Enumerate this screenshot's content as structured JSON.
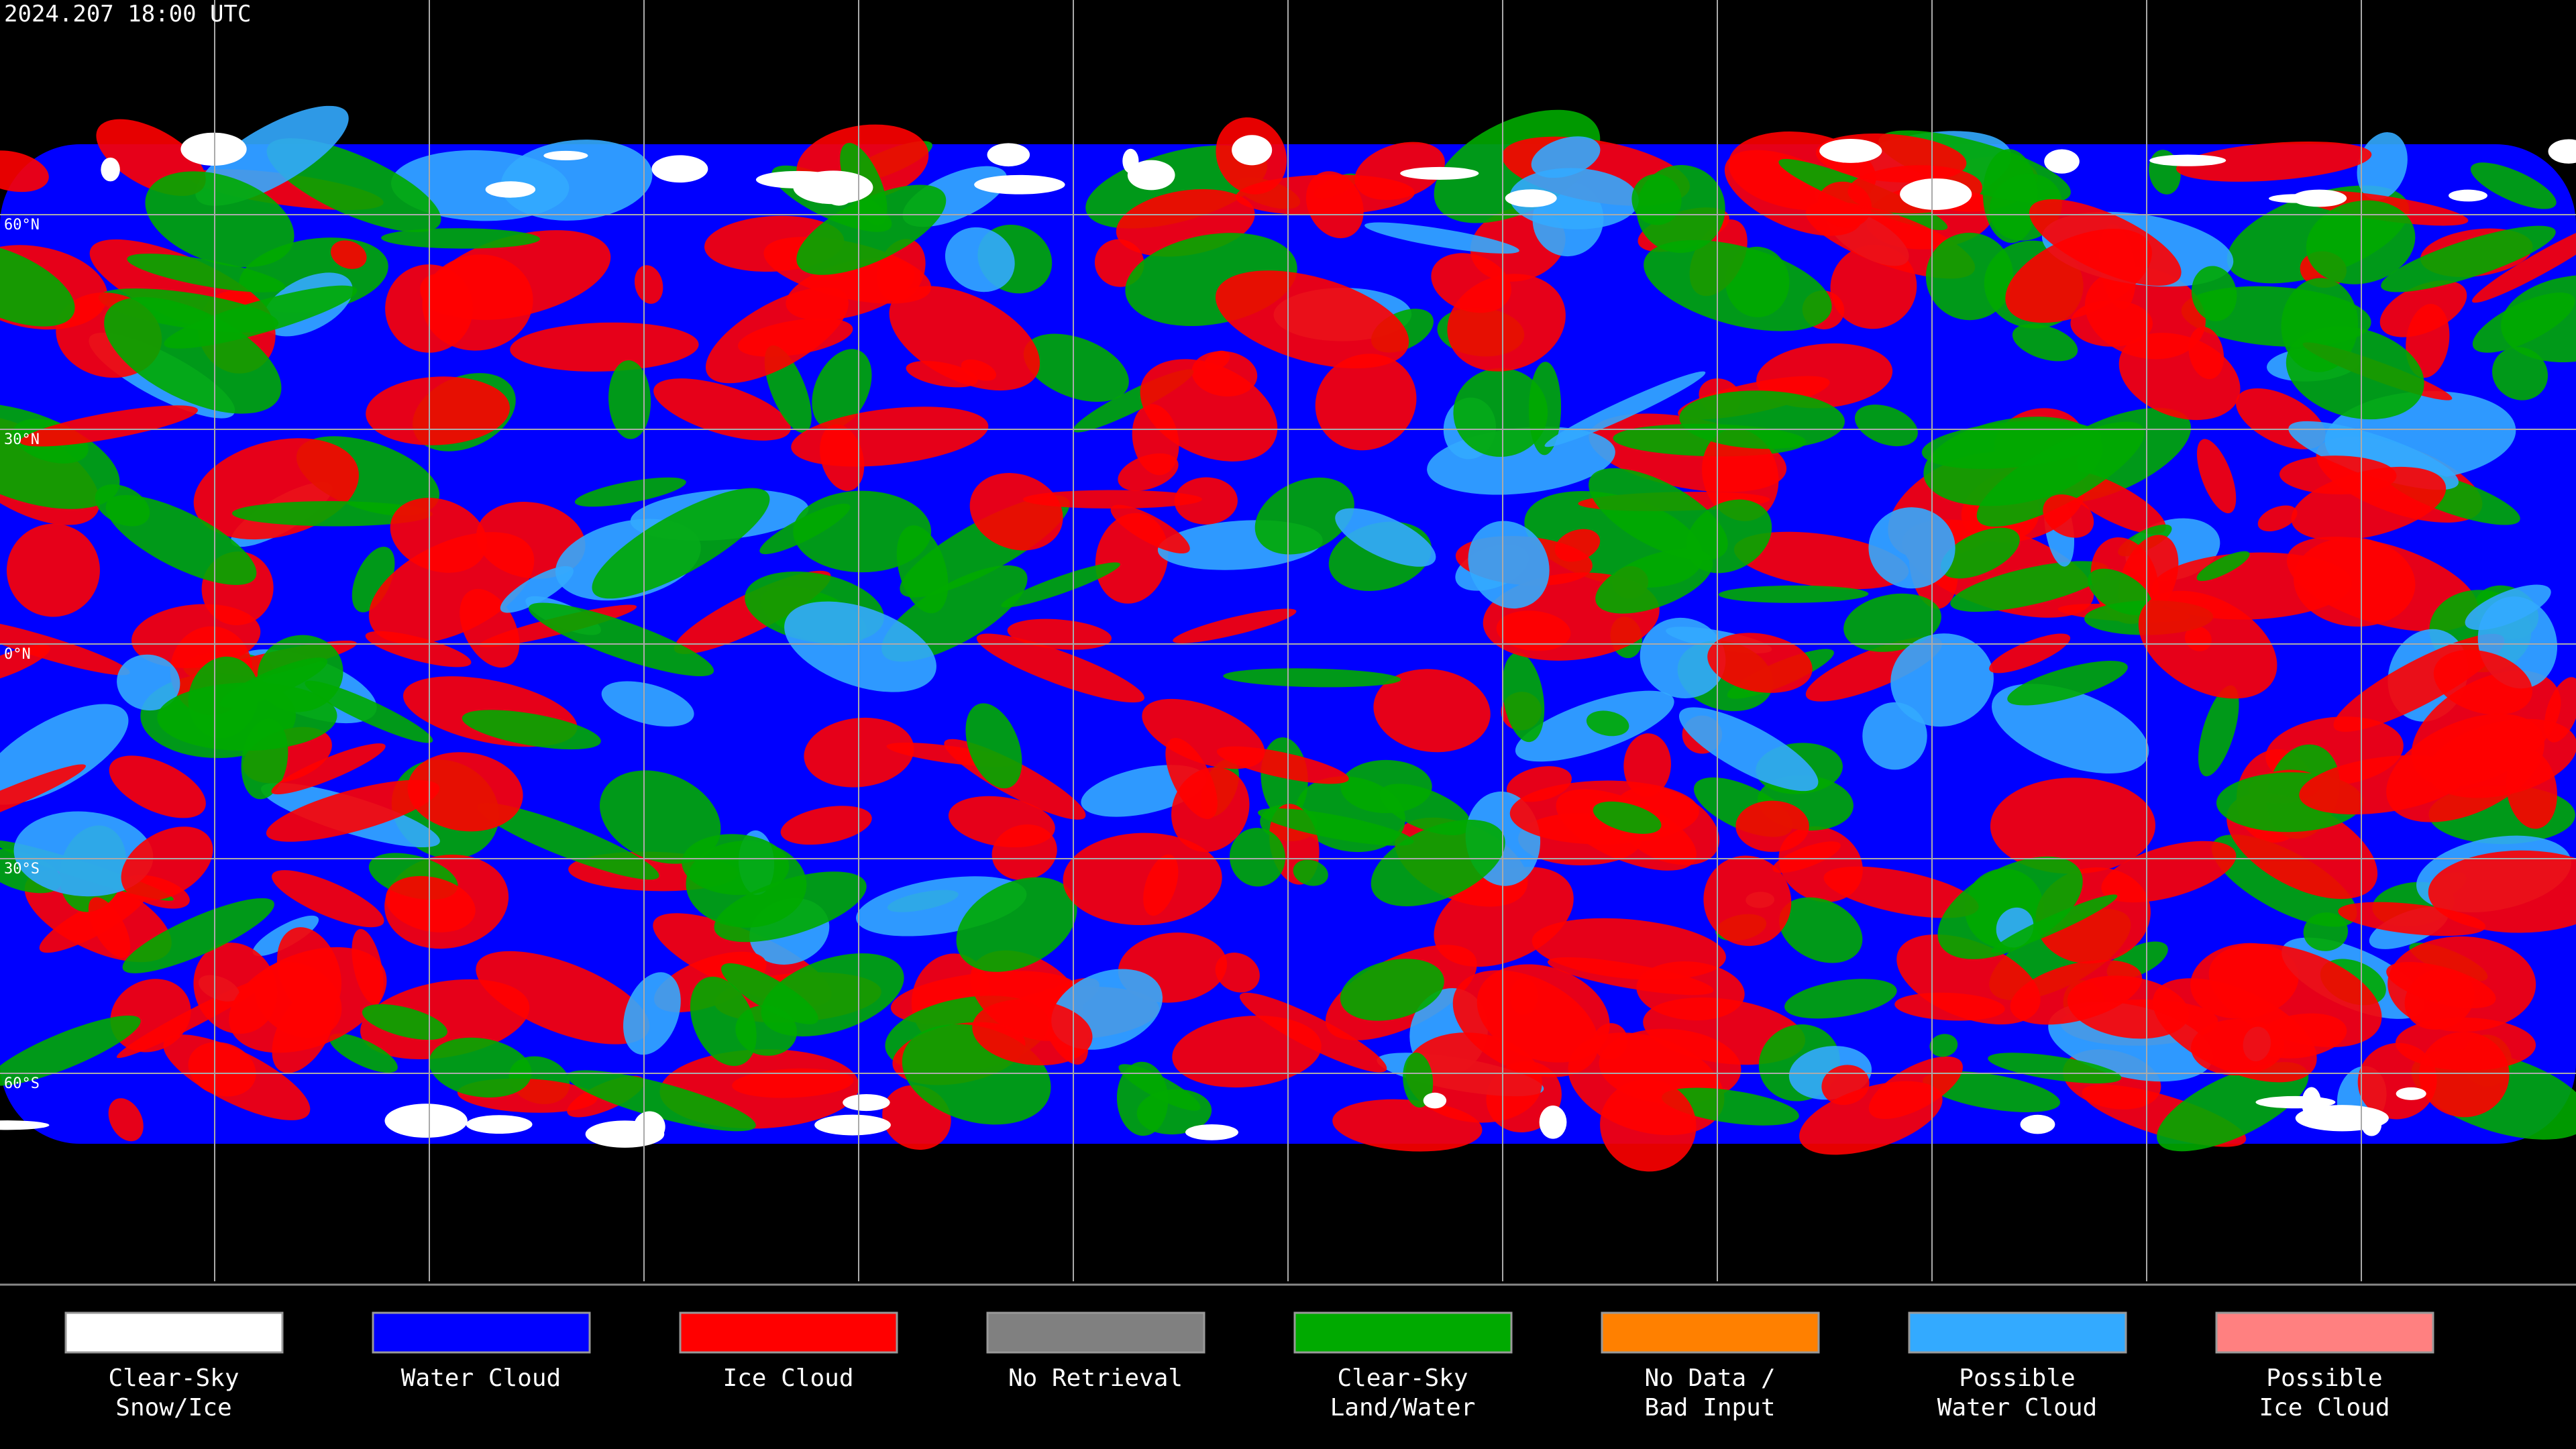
{
  "header": {
    "timestamp": "2024.207 18:00 UTC"
  },
  "latitude_labels": [
    "60°N",
    "30°N",
    "0°N",
    "30°S",
    "60°S"
  ],
  "legend": [
    {
      "lines": [
        "Clear-Sky",
        "Snow/Ice"
      ],
      "color": "#ffffff"
    },
    {
      "lines": [
        "Water Cloud"
      ],
      "color": "#0000ff"
    },
    {
      "lines": [
        "Ice Cloud"
      ],
      "color": "#ff0000"
    },
    {
      "lines": [
        "No Retrieval"
      ],
      "color": "#808080"
    },
    {
      "lines": [
        "Clear-Sky",
        "Land/Water"
      ],
      "color": "#00aa00"
    },
    {
      "lines": [
        "No Data /",
        "Bad Input"
      ],
      "color": "#ff8000"
    },
    {
      "lines": [
        "Possible",
        "Water Cloud"
      ],
      "color": "#33aaff"
    },
    {
      "lines": [
        "Possible",
        "Ice Cloud"
      ],
      "color": "#ff8080"
    }
  ]
}
